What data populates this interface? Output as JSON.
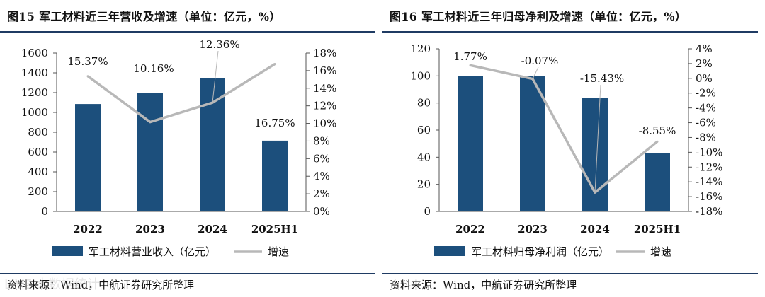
{
  "colors": {
    "bar": "#1c4f7c",
    "line": "#b8b8b8",
    "rule": "#1f3b63",
    "axis": "#555555"
  },
  "watermark": "LIVE 大数据统计",
  "charts": [
    {
      "title": "图15  军工材料近三年营收及增速（单位：亿元，%）",
      "source": "资料来源：Wind，中航证券研究所整理",
      "chart_data": {
        "type": "bar",
        "categories": [
          "2022",
          "2023",
          "2024",
          "2025H1"
        ],
        "series": [
          {
            "name": "军工材料营业收入（亿元）",
            "axis": "left",
            "kind": "bar",
            "values": [
              1085,
              1195,
              1345,
              715
            ]
          },
          {
            "name": "增速",
            "axis": "right",
            "kind": "line",
            "values": [
              15.37,
              10.16,
              12.36,
              16.75
            ]
          }
        ],
        "data_labels": [
          "15.37%",
          "10.16%",
          "12.36%",
          "16.75%"
        ],
        "left_axis": {
          "min": 0,
          "max": 1600,
          "step": 200,
          "ticks": [
            "0",
            "200",
            "400",
            "600",
            "800",
            "1000",
            "1200",
            "1400",
            "1600"
          ]
        },
        "right_axis": {
          "min": 0,
          "max": 18,
          "step": 2,
          "ticks": [
            "0%",
            "2%",
            "4%",
            "6%",
            "8%",
            "10%",
            "12%",
            "14%",
            "16%",
            "18%"
          ]
        },
        "legend": [
          "军工材料营业收入（亿元）",
          "增速"
        ],
        "legend_position": "bottom"
      }
    },
    {
      "title": "图16  军工材料近三年归母净利及增速（单位：亿元，%）",
      "source": "资料来源：Wind，中航证券研究所整理",
      "chart_data": {
        "type": "bar",
        "categories": [
          "2022",
          "2023",
          "2024",
          "2025H1"
        ],
        "series": [
          {
            "name": "军工材料归母净利润（亿元）",
            "axis": "left",
            "kind": "bar",
            "values": [
              100,
              100,
              84,
              43
            ]
          },
          {
            "name": "增速",
            "axis": "right",
            "kind": "line",
            "values": [
              1.77,
              -0.07,
              -15.43,
              -8.55
            ]
          }
        ],
        "data_labels": [
          "1.77%",
          "-0.07%",
          "-15.43%",
          "-8.55%"
        ],
        "left_axis": {
          "min": 0,
          "max": 120,
          "step": 20,
          "ticks": [
            "0",
            "20",
            "40",
            "60",
            "80",
            "100",
            "120"
          ]
        },
        "right_axis": {
          "min": -18,
          "max": 4,
          "step": 2,
          "ticks": [
            "-18%",
            "-16%",
            "-14%",
            "-12%",
            "-10%",
            "-8%",
            "-6%",
            "-4%",
            "-2%",
            "0%",
            "2%",
            "4%"
          ]
        },
        "legend": [
          "军工材料归母净利润（亿元）",
          "增速"
        ],
        "legend_position": "bottom"
      }
    }
  ]
}
